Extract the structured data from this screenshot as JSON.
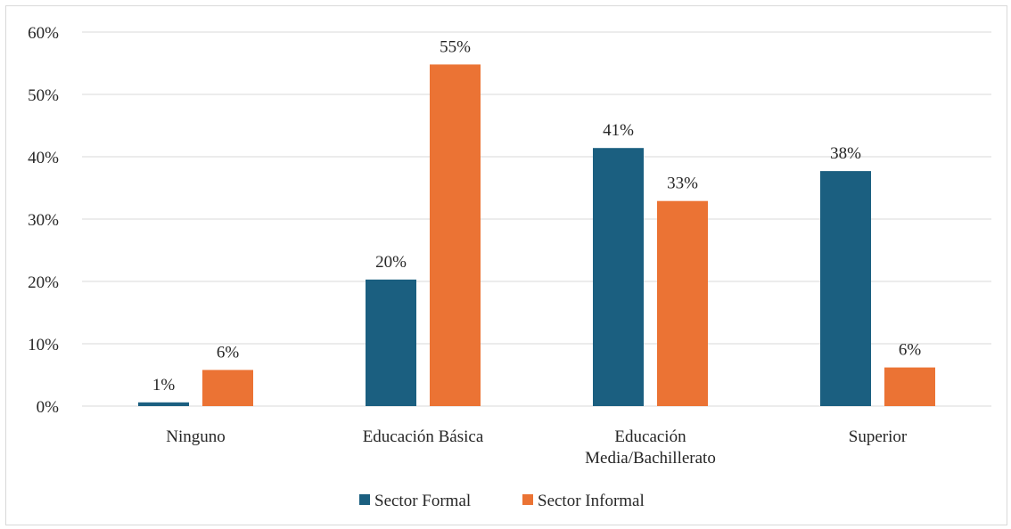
{
  "chart_data": {
    "type": "bar",
    "title": "",
    "xlabel": "",
    "ylabel": "",
    "ylim": [
      0,
      0.6
    ],
    "y_ticks": [
      "0%",
      "10%",
      "20%",
      "30%",
      "40%",
      "50%",
      "60%"
    ],
    "categories": [
      [
        "Ninguno"
      ],
      [
        "Educación Básica"
      ],
      [
        "Educación",
        "Media/Bachillerato"
      ],
      [
        "Superior"
      ]
    ],
    "series": [
      {
        "name": "Sector Formal",
        "color": "#1b5f80",
        "values": [
          0.006,
          0.203,
          0.414,
          0.377
        ],
        "labels": [
          "1%",
          "20%",
          "41%",
          "38%"
        ]
      },
      {
        "name": "Sector Informal",
        "color": "#eb7334",
        "values": [
          0.058,
          0.548,
          0.329,
          0.062
        ],
        "labels": [
          "6%",
          "55%",
          "33%",
          "6%"
        ]
      }
    ],
    "grid": true,
    "legend_position": "bottom"
  }
}
